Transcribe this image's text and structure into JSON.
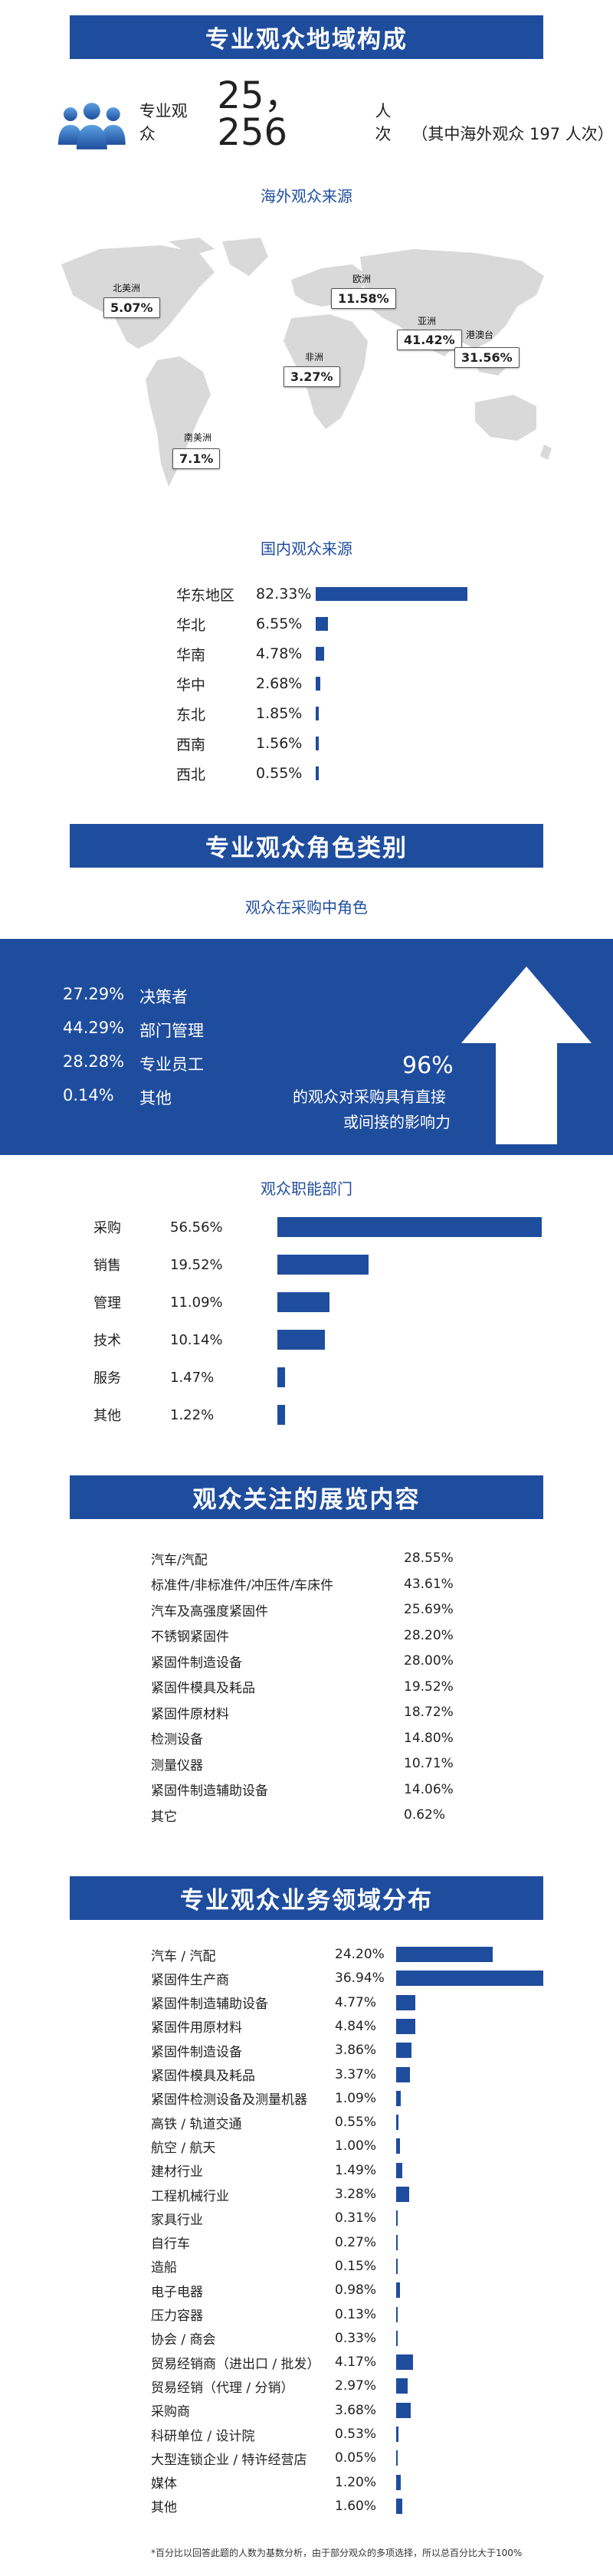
{
  "sections": {
    "geo_title": "专业观众地域构成",
    "role_title": "专业观众角色类别",
    "exhibit_title": "观众关注的展览内容",
    "business_title": "专业观众业务领域分布"
  },
  "total": {
    "label": "专业观众",
    "number": "25，256",
    "unit": "人次",
    "note": "（其中海外观众 197 人次）"
  },
  "overseas": {
    "title": "海外观众来源",
    "regions": [
      {
        "name": "北美洲",
        "value": "5.07%"
      },
      {
        "name": "欧洲",
        "value": "11.58%"
      },
      {
        "name": "亚洲",
        "value": "41.42%"
      },
      {
        "name": "港澳台",
        "value": "31.56%"
      },
      {
        "name": "非洲",
        "value": "3.27%"
      },
      {
        "name": "南美洲",
        "value": "7.1%"
      }
    ]
  },
  "domestic": {
    "title": "国内观众来源",
    "rows": [
      {
        "name": "华东地区",
        "value": "82.33%",
        "pct": 82.33
      },
      {
        "name": "华北",
        "value": "6.55%",
        "pct": 6.55
      },
      {
        "name": "华南",
        "value": "4.78%",
        "pct": 4.78
      },
      {
        "name": "华中",
        "value": "2.68%",
        "pct": 2.68
      },
      {
        "name": "东北",
        "value": "1.85%",
        "pct": 1.85
      },
      {
        "name": "西南",
        "value": "1.56%",
        "pct": 1.56
      },
      {
        "name": "西北",
        "value": "0.55%",
        "pct": 0.55
      }
    ]
  },
  "purchase_role": {
    "title": "观众在采购中角色",
    "rows": [
      {
        "pct": "27.29%",
        "name": "决策者"
      },
      {
        "pct": "44.29%",
        "name": "部门管理"
      },
      {
        "pct": "28.28%",
        "name": "专业员工"
      },
      {
        "pct": "0.14%",
        "name": "其他"
      }
    ],
    "influence_pct": "96%",
    "influence_line1": "的观众对采购具有直接",
    "influence_line2": "或间接的影响力"
  },
  "function": {
    "title": "观众职能部门",
    "rows": [
      {
        "name": "采购",
        "value": "56.56%",
        "pct": 56.56
      },
      {
        "name": "销售",
        "value": "19.52%",
        "pct": 19.52
      },
      {
        "name": "管理",
        "value": "11.09%",
        "pct": 11.09
      },
      {
        "name": "技术",
        "value": "10.14%",
        "pct": 10.14
      },
      {
        "name": "服务",
        "value": "1.47%",
        "pct": 1.47
      },
      {
        "name": "其他",
        "value": "1.22%",
        "pct": 1.22
      }
    ]
  },
  "exhibits": [
    {
      "name": "汽车/汽配",
      "value": "28.55%"
    },
    {
      "name": "标准件/非标准件/冲压件/车床件",
      "value": "43.61%"
    },
    {
      "name": "汽车及高强度紧固件",
      "value": "25.69%"
    },
    {
      "name": "不锈钢紧固件",
      "value": "28.20%"
    },
    {
      "name": "紧固件制造设备",
      "value": "28.00%"
    },
    {
      "name": "紧固件模具及耗品",
      "value": "19.52%"
    },
    {
      "name": "紧固件原材料",
      "value": "18.72%"
    },
    {
      "name": "检测设备",
      "value": "14.80%"
    },
    {
      "name": "测量仪器",
      "value": "10.71%"
    },
    {
      "name": "紧固件制造辅助设备",
      "value": "14.06%"
    },
    {
      "name": "其它",
      "value": "0.62%"
    }
  ],
  "business": [
    {
      "name": "汽车 / 汽配",
      "value": "24.20%",
      "pct": 24.2
    },
    {
      "name": "紧固件生产商",
      "value": "36.94%",
      "pct": 36.94
    },
    {
      "name": "紧固件制造辅助设备",
      "value": "4.77%",
      "pct": 4.77
    },
    {
      "name": "紧固件用原材料",
      "value": "4.84%",
      "pct": 4.84
    },
    {
      "name": "紧固件制造设备",
      "value": "3.86%",
      "pct": 3.86
    },
    {
      "name": "紧固件模具及耗品",
      "value": "3.37%",
      "pct": 3.37
    },
    {
      "name": "紧固件检测设备及测量机器",
      "value": "1.09%",
      "pct": 1.09
    },
    {
      "name": "高铁 / 轨道交通",
      "value": "0.55%",
      "pct": 0.55
    },
    {
      "name": "航空 / 航天",
      "value": "1.00%",
      "pct": 1.0
    },
    {
      "name": "建材行业",
      "value": "1.49%",
      "pct": 1.49
    },
    {
      "name": "工程机械行业",
      "value": "3.28%",
      "pct": 3.28
    },
    {
      "name": "家具行业",
      "value": "0.31%",
      "pct": 0.31
    },
    {
      "name": "自行车",
      "value": "0.27%",
      "pct": 0.27
    },
    {
      "name": "造船",
      "value": "0.15%",
      "pct": 0.15
    },
    {
      "name": "电子电器",
      "value": "0.98%",
      "pct": 0.98
    },
    {
      "name": "压力容器",
      "value": "0.13%",
      "pct": 0.13
    },
    {
      "name": "协会 / 商会",
      "value": "0.33%",
      "pct": 0.33
    },
    {
      "name": "贸易经销商（进出口 / 批发）",
      "value": "4.17%",
      "pct": 4.17
    },
    {
      "name": "贸易经销（代理 / 分销）",
      "value": "2.97%",
      "pct": 2.97
    },
    {
      "name": "采购商",
      "value": "3.68%",
      "pct": 3.68
    },
    {
      "name": "科研单位 / 设计院",
      "value": "0.53%",
      "pct": 0.53
    },
    {
      "name": "大型连锁企业 / 特许经营店",
      "value": "0.05%",
      "pct": 0.05
    },
    {
      "name": "媒体",
      "value": "1.20%",
      "pct": 1.2
    },
    {
      "name": "其他",
      "value": "1.60%",
      "pct": 1.6
    }
  ],
  "footnote": "*百分比以回答此题的人数为基数分析，由于部分观众的多项选择，所以总百分比大于100%",
  "colors": {
    "accent": "#1f4d9e",
    "map": "#d9d9d9"
  }
}
